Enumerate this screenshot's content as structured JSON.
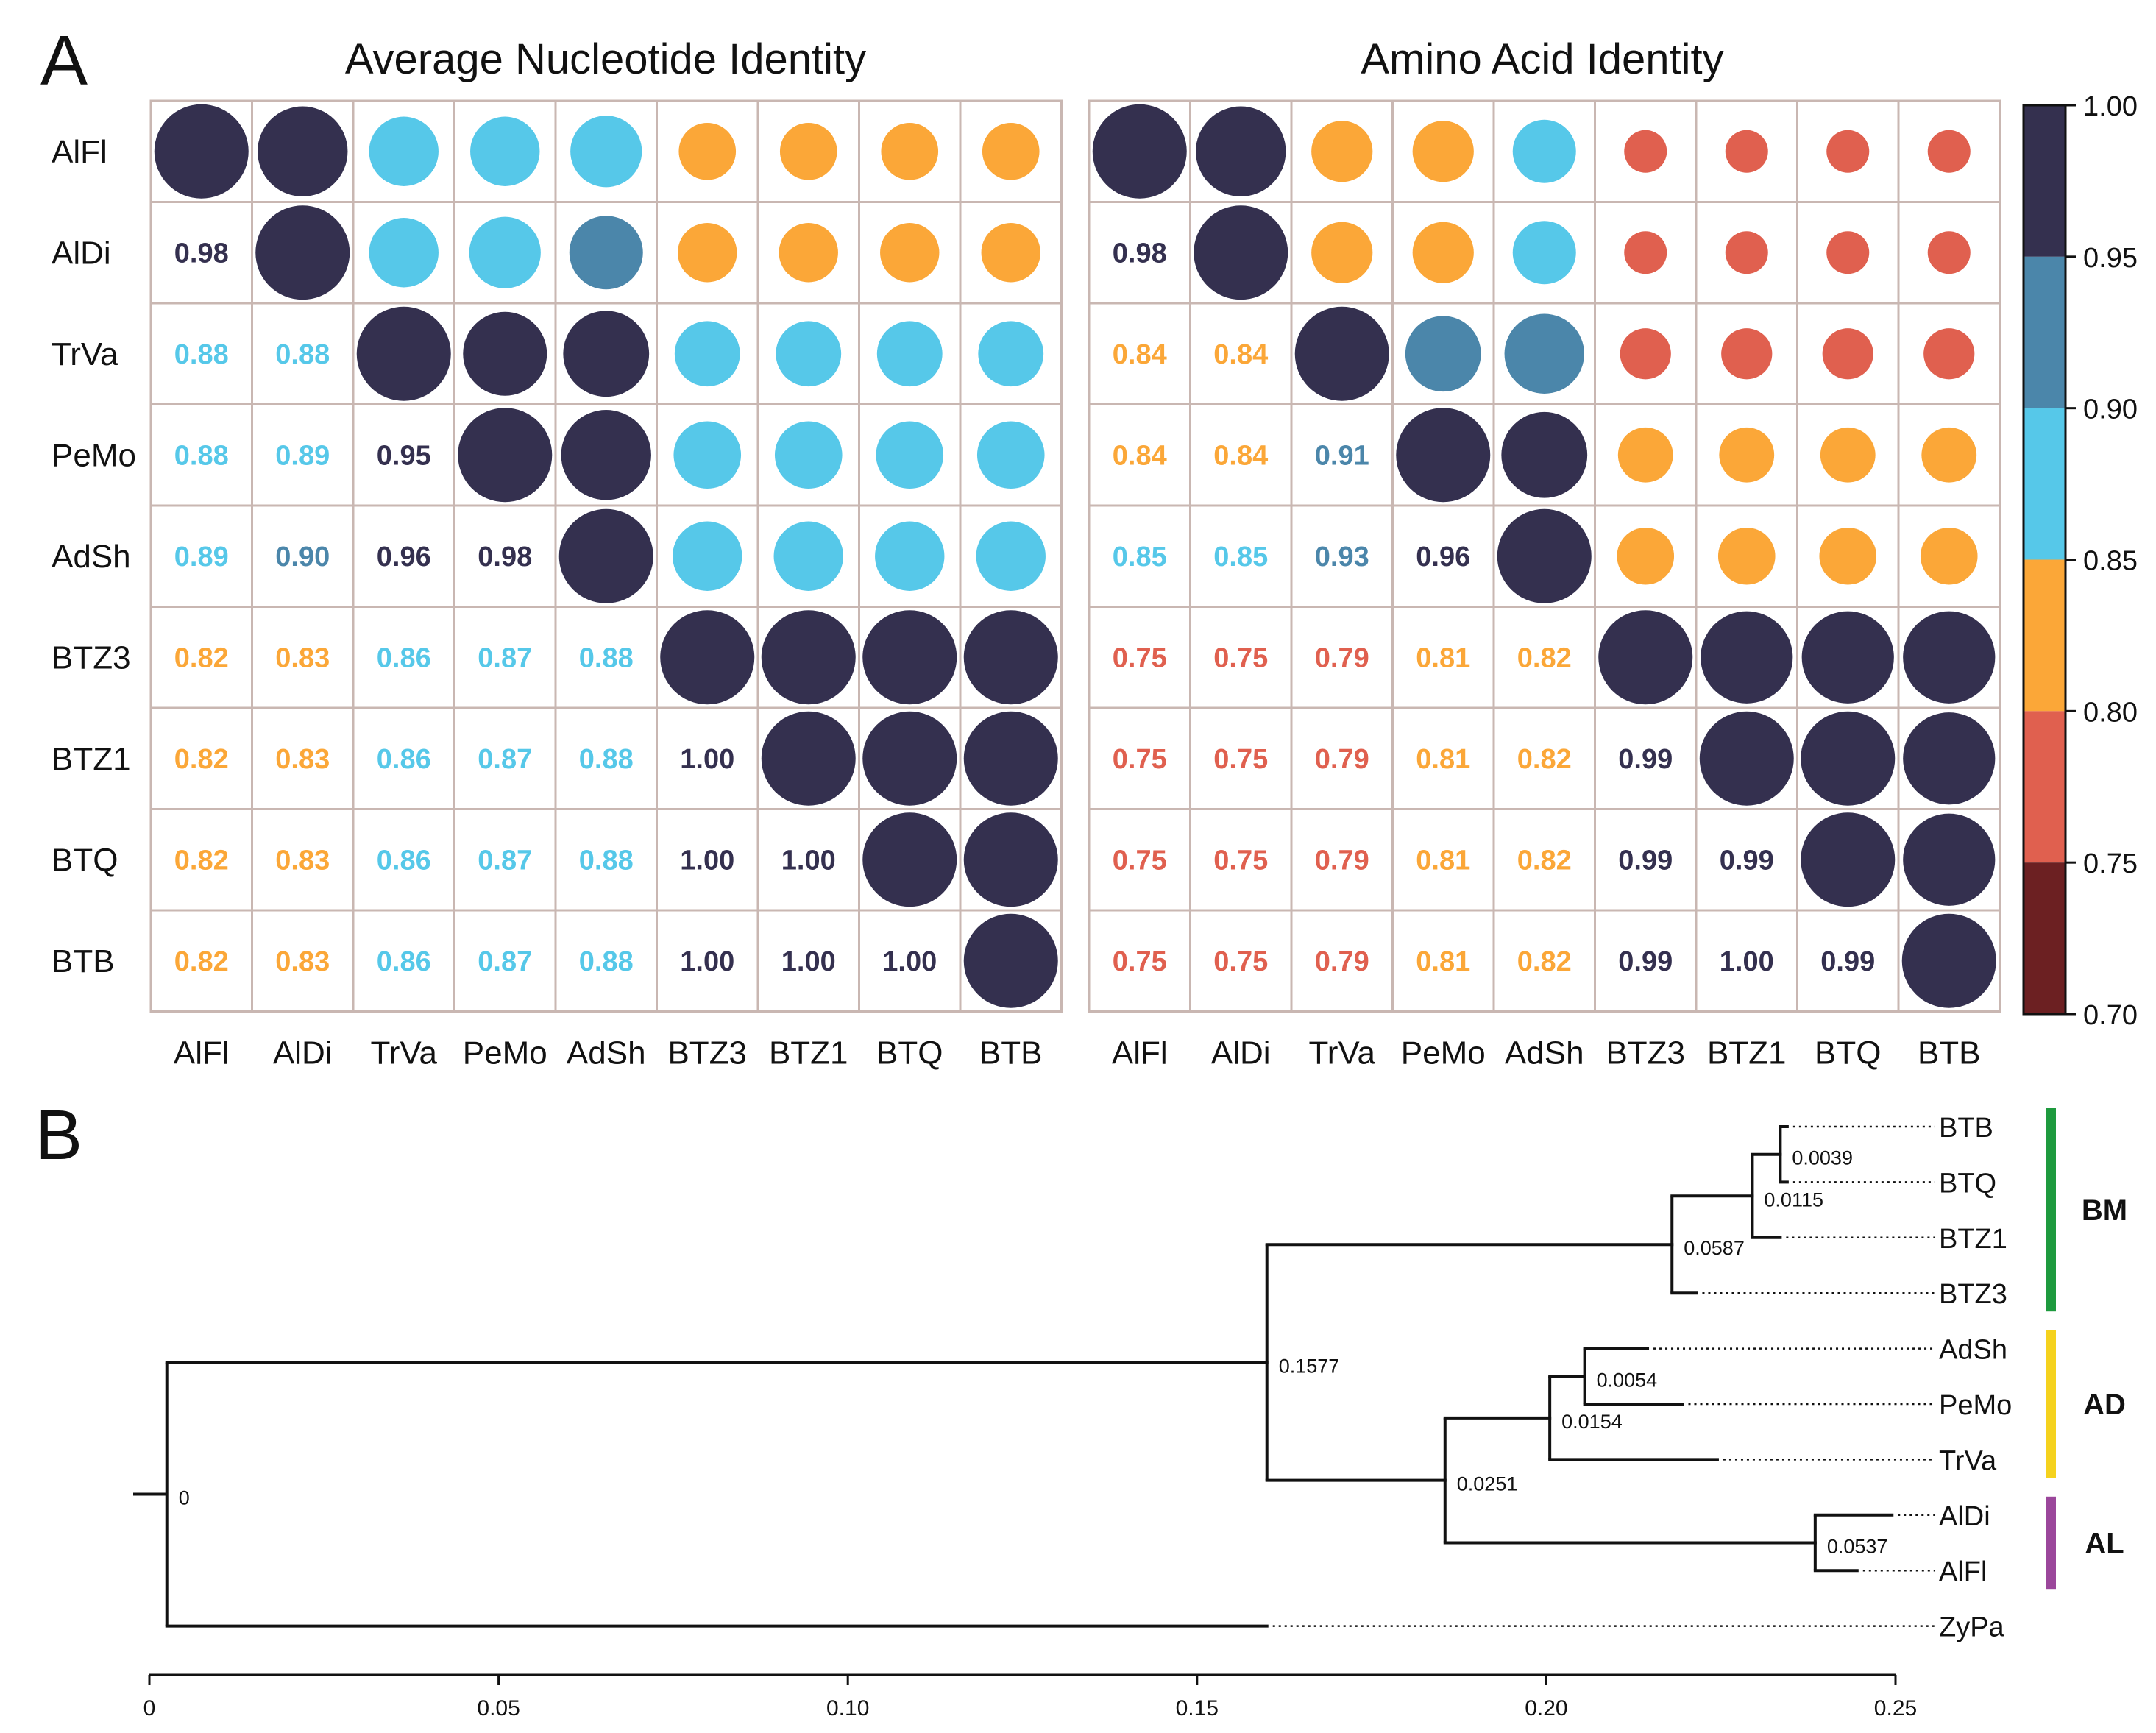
{
  "panels": {
    "a_label": "A",
    "b_label": "B"
  },
  "chart_data": [
    {
      "type": "heatmap",
      "title": "Average Nucleotide Identity",
      "row_labels": [
        "AlFl",
        "AlDi",
        "TrVa",
        "PeMo",
        "AdSh",
        "BTZ3",
        "BTZ1",
        "BTQ",
        "BTB"
      ],
      "col_labels": [
        "AlFl",
        "AlDi",
        "TrVa",
        "PeMo",
        "AdSh",
        "BTZ3",
        "BTZ1",
        "BTQ",
        "BTB"
      ],
      "lower_triangle_text": [
        [],
        [
          "0.98"
        ],
        [
          "0.88",
          "0.88"
        ],
        [
          "0.88",
          "0.89",
          "0.95"
        ],
        [
          "0.89",
          "0.90",
          "0.96",
          "0.98"
        ],
        [
          "0.82",
          "0.83",
          "0.86",
          "0.87",
          "0.88"
        ],
        [
          "0.82",
          "0.83",
          "0.86",
          "0.87",
          "0.88",
          "1.00"
        ],
        [
          "0.82",
          "0.83",
          "0.86",
          "0.87",
          "0.88",
          "1.00",
          "1.00"
        ],
        [
          "0.82",
          "0.83",
          "0.86",
          "0.87",
          "0.88",
          "1.00",
          "1.00",
          "1.00"
        ]
      ],
      "upper_triangle_values": [
        [
          1.0,
          0.98,
          0.88,
          0.88,
          0.89,
          0.82,
          0.82,
          0.82,
          0.82
        ],
        [
          null,
          1.0,
          0.88,
          0.89,
          0.9,
          0.83,
          0.83,
          0.83,
          0.83
        ],
        [
          null,
          null,
          1.0,
          0.95,
          0.96,
          0.86,
          0.86,
          0.86,
          0.86
        ],
        [
          null,
          null,
          null,
          1.0,
          0.98,
          0.87,
          0.87,
          0.87,
          0.87
        ],
        [
          null,
          null,
          null,
          null,
          1.0,
          0.88,
          0.88,
          0.88,
          0.88
        ],
        [
          null,
          null,
          null,
          null,
          null,
          1.0,
          1.0,
          1.0,
          1.0
        ],
        [
          null,
          null,
          null,
          null,
          null,
          null,
          1.0,
          1.0,
          1.0
        ],
        [
          null,
          null,
          null,
          null,
          null,
          null,
          null,
          1.0,
          1.0
        ],
        [
          null,
          null,
          null,
          null,
          null,
          null,
          null,
          null,
          1.0
        ]
      ]
    },
    {
      "type": "heatmap",
      "title": "Amino Acid Identity",
      "row_labels": [
        "AlFl",
        "AlDi",
        "TrVa",
        "PeMo",
        "AdSh",
        "BTZ3",
        "BTZ1",
        "BTQ",
        "BTB"
      ],
      "col_labels": [
        "AlFl",
        "AlDi",
        "TrVa",
        "PeMo",
        "AdSh",
        "BTZ3",
        "BTZ1",
        "BTQ",
        "BTB"
      ],
      "lower_triangle_text": [
        [],
        [
          "0.98"
        ],
        [
          "0.84",
          "0.84"
        ],
        [
          "0.84",
          "0.84",
          "0.91"
        ],
        [
          "0.85",
          "0.85",
          "0.93",
          "0.96"
        ],
        [
          "0.75",
          "0.75",
          "0.79",
          "0.81",
          "0.82"
        ],
        [
          "0.75",
          "0.75",
          "0.79",
          "0.81",
          "0.82",
          "0.99"
        ],
        [
          "0.75",
          "0.75",
          "0.79",
          "0.81",
          "0.82",
          "0.99",
          "0.99"
        ],
        [
          "0.75",
          "0.75",
          "0.79",
          "0.81",
          "0.82",
          "0.99",
          "1.00",
          "0.99"
        ]
      ],
      "upper_triangle_values": [
        [
          1.0,
          0.98,
          0.84,
          0.84,
          0.85,
          0.75,
          0.75,
          0.75,
          0.75
        ],
        [
          null,
          1.0,
          0.84,
          0.84,
          0.85,
          0.75,
          0.75,
          0.75,
          0.75
        ],
        [
          null,
          null,
          1.0,
          0.91,
          0.93,
          0.79,
          0.79,
          0.79,
          0.79
        ],
        [
          null,
          null,
          null,
          1.0,
          0.96,
          0.81,
          0.81,
          0.81,
          0.81
        ],
        [
          null,
          null,
          null,
          null,
          1.0,
          0.82,
          0.82,
          0.82,
          0.82
        ],
        [
          null,
          null,
          null,
          null,
          null,
          1.0,
          0.99,
          0.99,
          0.99
        ],
        [
          null,
          null,
          null,
          null,
          null,
          null,
          1.0,
          1.0,
          0.99
        ],
        [
          null,
          null,
          null,
          null,
          null,
          null,
          null,
          1.0,
          0.99
        ],
        [
          null,
          null,
          null,
          null,
          null,
          null,
          null,
          null,
          1.0
        ]
      ]
    },
    {
      "type": "colorbar",
      "range": [
        0.7,
        1.0
      ],
      "ticks": [
        "1.00",
        "0.95",
        "0.90",
        "0.85",
        "0.80",
        "0.75",
        "0.70"
      ],
      "bins": [
        {
          "min": 0.95,
          "max": 1.0,
          "color": "#34304f"
        },
        {
          "min": 0.9,
          "max": 0.95,
          "color": "#4b86aa"
        },
        {
          "min": 0.85,
          "max": 0.9,
          "color": "#56c8e9"
        },
        {
          "min": 0.8,
          "max": 0.85,
          "color": "#fba738"
        },
        {
          "min": 0.75,
          "max": 0.8,
          "color": "#e0604f"
        },
        {
          "min": 0.7,
          "max": 0.75,
          "color": "#6c2022"
        }
      ]
    },
    {
      "type": "tree",
      "x_axis": {
        "range": [
          0,
          0.25
        ],
        "ticks": [
          0,
          0.05,
          0.1,
          0.15,
          0.2,
          0.25
        ],
        "tick_labels": [
          "0",
          "0.05",
          "0.10",
          "0.15",
          "0.20",
          "0.25"
        ]
      },
      "tips": [
        "BTB",
        "BTQ",
        "BTZ1",
        "BTZ3",
        "AdSh",
        "PeMo",
        "TrVa",
        "AlDi",
        "AlFl",
        "ZyPa"
      ],
      "tip_depths": {
        "BTB": 0.2345,
        "BTQ": 0.2345,
        "BTZ1": 0.2335,
        "BTZ3": 0.2215,
        "AdSh": 0.2145,
        "PeMo": 0.2195,
        "TrVa": 0.2245,
        "AlDi": 0.2495,
        "AlFl": 0.2445,
        "ZyPa": 0.16
      },
      "nodes": [
        {
          "id": "root",
          "depth": 0.0025,
          "label": "0",
          "children": [
            "ingroup",
            "ZyPa"
          ]
        },
        {
          "id": "ingroup",
          "depth": 0.16,
          "label": "0.1577",
          "children": [
            "BM",
            "ADAL"
          ]
        },
        {
          "id": "BM",
          "depth": 0.218,
          "label": "0.0587",
          "children": [
            "BMa",
            "BTZ3"
          ]
        },
        {
          "id": "BMa",
          "depth": 0.2295,
          "label": "0.0115",
          "children": [
            "BMb",
            "BTZ1"
          ]
        },
        {
          "id": "BMb",
          "depth": 0.2335,
          "label": "0.0039",
          "children": [
            "BTB",
            "BTQ"
          ]
        },
        {
          "id": "ADAL",
          "depth": 0.1855,
          "label": "0.0251",
          "children": [
            "AD",
            "AL"
          ]
        },
        {
          "id": "AD",
          "depth": 0.2005,
          "label": "0.0154",
          "children": [
            "ADa",
            "TrVa"
          ]
        },
        {
          "id": "ADa",
          "depth": 0.2055,
          "label": "0.0054",
          "children": [
            "AdSh",
            "PeMo"
          ]
        },
        {
          "id": "AL",
          "depth": 0.2385,
          "label": "0.0537",
          "children": [
            "AlDi",
            "AlFl"
          ]
        }
      ],
      "groups": [
        {
          "label": "BM",
          "members": [
            "BTB",
            "BTQ",
            "BTZ1",
            "BTZ3"
          ],
          "color": "#1e9a3e"
        },
        {
          "label": "AD",
          "members": [
            "AdSh",
            "PeMo",
            "TrVa"
          ],
          "color": "#f5d21e"
        },
        {
          "label": "AL",
          "members": [
            "AlDi",
            "AlFl"
          ],
          "color": "#9b479b"
        }
      ]
    }
  ]
}
